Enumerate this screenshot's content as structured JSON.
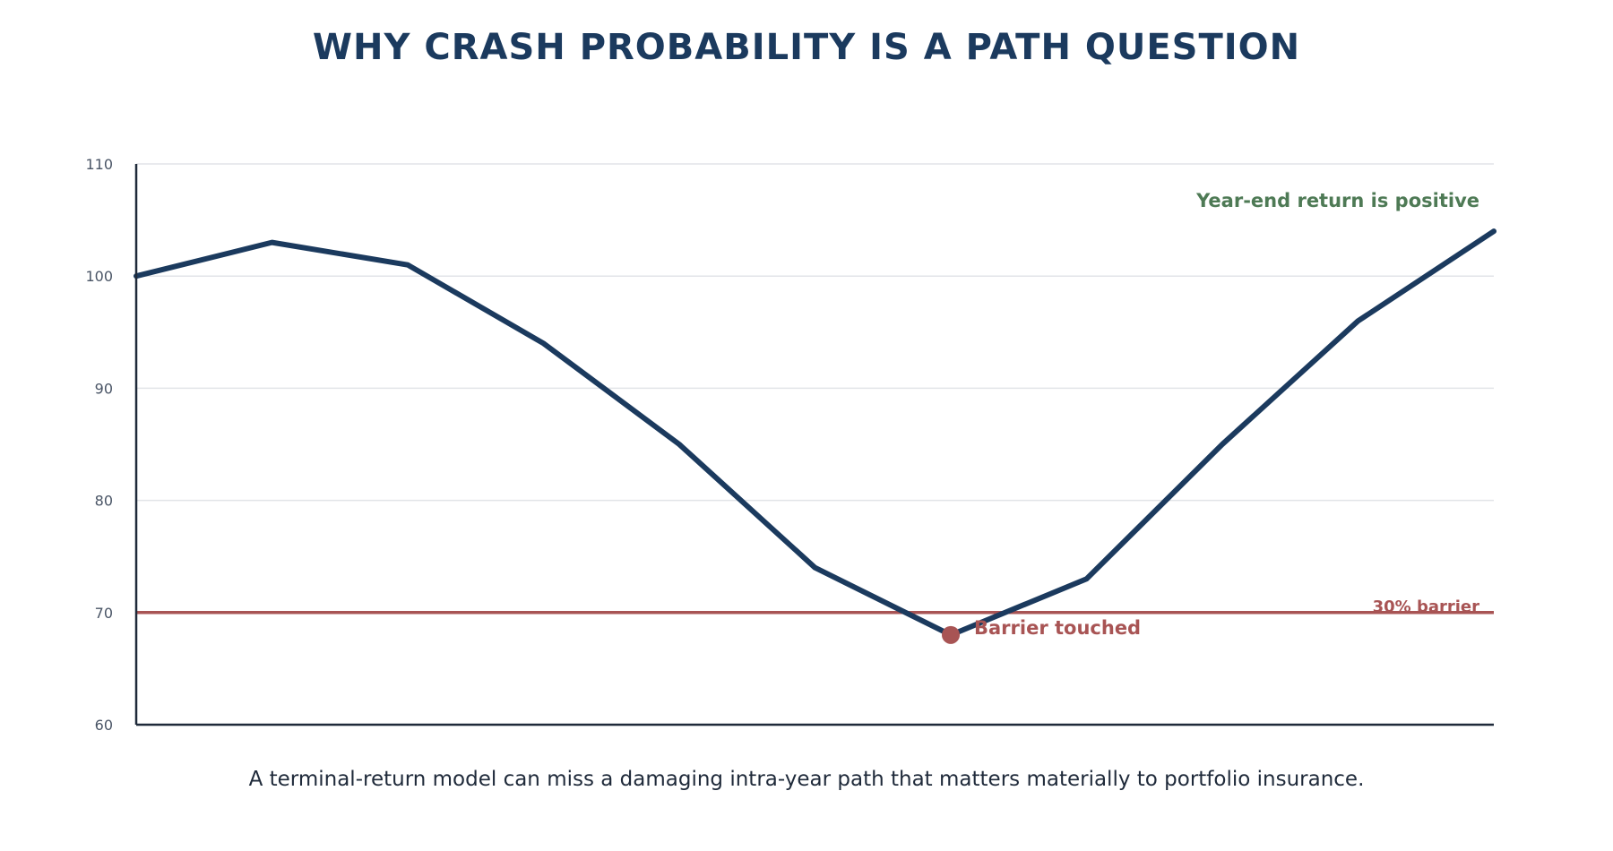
{
  "title": "WHY CRASH PROBABILITY IS A PATH QUESTION",
  "caption": "A terminal-return model can miss a damaging intra-year path that matters materially to portfolio insurance.",
  "chart_data": {
    "type": "line",
    "title": "WHY CRASH PROBABILITY IS A PATH QUESTION",
    "xlabel": "",
    "ylabel": "",
    "ylim": [
      60,
      110
    ],
    "yticks": [
      60,
      70,
      80,
      90,
      100,
      110
    ],
    "grid": true,
    "x": [
      0,
      1,
      2,
      3,
      4,
      5,
      6,
      7,
      8,
      9,
      10
    ],
    "series": [
      {
        "values": [
          100,
          103,
          101,
          94,
          85,
          74,
          68,
          73,
          85,
          96,
          104
        ],
        "color": "#1b3a5e"
      }
    ],
    "barrier": {
      "value": 70,
      "label": "30% barrier",
      "color": "#a85454"
    },
    "annotations": [
      {
        "text": "Barrier touched",
        "x": 6,
        "y": 68,
        "color": "#a85454",
        "marker": true
      },
      {
        "text": "Year-end return is positive",
        "color": "#4e7a55"
      }
    ]
  }
}
